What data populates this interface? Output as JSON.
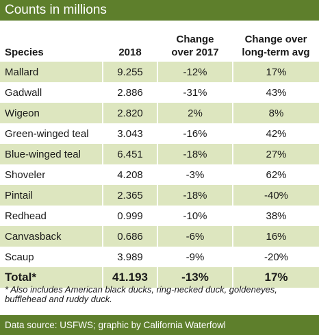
{
  "header": {
    "title": "Counts in millions"
  },
  "table": {
    "columns": [
      "Species",
      "2018",
      "Change\nover 2017",
      "Change over\nlong-term avg"
    ],
    "rows": [
      [
        "Mallard",
        "9.255",
        "-12%",
        "17%"
      ],
      [
        "Gadwall",
        "2.886",
        "-31%",
        "43%"
      ],
      [
        "Wigeon",
        "2.820",
        "2%",
        "8%"
      ],
      [
        "Green-winged teal",
        "3.043",
        "-16%",
        "42%"
      ],
      [
        "Blue-winged teal",
        "6.451",
        "-18%",
        "27%"
      ],
      [
        "Shoveler",
        "4.208",
        "-3%",
        "62%"
      ],
      [
        "Pintail",
        "2.365",
        "-18%",
        "-40%"
      ],
      [
        "Redhead",
        "0.999",
        "-10%",
        "38%"
      ],
      [
        "Canvasback",
        "0.686",
        "-6%",
        "16%"
      ],
      [
        "Scaup",
        "3.989",
        "-9%",
        "-20%"
      ]
    ],
    "total": [
      "Total*",
      "41.193",
      "-13%",
      "17%"
    ]
  },
  "footnote": "* Also includes American black ducks, ring-necked duck, goldeneyes, bufflehead and ruddy duck.",
  "source": "Data source: USFWS; graphic by California Waterfowl"
}
